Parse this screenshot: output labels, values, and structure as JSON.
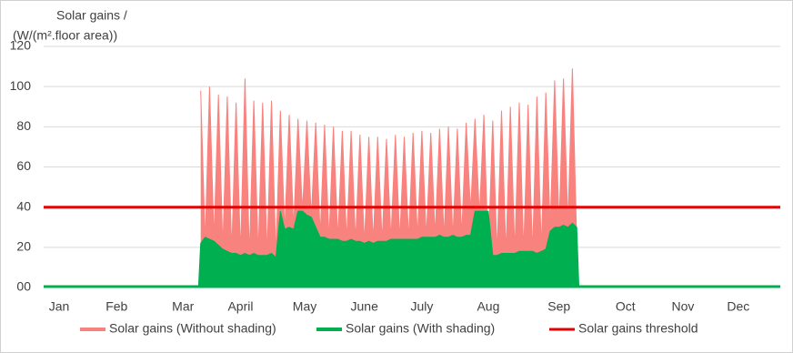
{
  "chart_data": {
    "type": "area",
    "y_label": [
      "Solar gains /",
      "(W/(m².floor area))"
    ],
    "xlim": [
      9,
      342
    ],
    "xticks": [
      {
        "value": 16,
        "label": "Jan"
      },
      {
        "value": 42,
        "label": "Feb"
      },
      {
        "value": 72,
        "label": "Mar"
      },
      {
        "value": 98,
        "label": "April"
      },
      {
        "value": 127,
        "label": "May"
      },
      {
        "value": 154,
        "label": "June"
      },
      {
        "value": 180,
        "label": "July"
      },
      {
        "value": 210,
        "label": "Aug"
      },
      {
        "value": 242,
        "label": "Sep"
      },
      {
        "value": 272,
        "label": "Oct"
      },
      {
        "value": 298,
        "label": "Nov"
      },
      {
        "value": 323,
        "label": "Dec"
      }
    ],
    "ylim": [
      0,
      120
    ],
    "yticks": [
      {
        "value": 0,
        "label": "00"
      },
      20,
      40,
      60,
      80,
      100,
      120
    ],
    "grid": true,
    "legend": "bottom",
    "series": [
      {
        "name": "Solar gains (Without shading)",
        "color": "#f8827e",
        "x": [
          80,
          82,
          84,
          86,
          88,
          90,
          92,
          94,
          96,
          98,
          100,
          102,
          104,
          106,
          108,
          110,
          112,
          114,
          116,
          118,
          120,
          122,
          124,
          126,
          128,
          130,
          132,
          134,
          136,
          138,
          140,
          142,
          144,
          146,
          148,
          150,
          152,
          154,
          156,
          158,
          160,
          162,
          164,
          166,
          168,
          170,
          172,
          174,
          176,
          178,
          180,
          182,
          184,
          186,
          188,
          190,
          192,
          194,
          196,
          198,
          200,
          202,
          204,
          206,
          208,
          210,
          212,
          214,
          216,
          218,
          220,
          222,
          224,
          226,
          228,
          230,
          232,
          234,
          236,
          238,
          240,
          242,
          244,
          246,
          248,
          250
        ],
        "values": [
          98,
          22,
          100,
          24,
          96,
          20,
          95,
          18,
          92,
          17,
          104,
          16,
          93,
          17,
          92,
          16,
          93,
          16,
          88,
          28,
          86,
          30,
          84,
          38,
          83,
          35,
          82,
          26,
          81,
          24,
          80,
          24,
          78,
          23,
          78,
          23,
          76,
          22,
          75,
          23,
          75,
          23,
          74,
          24,
          76,
          24,
          75,
          24,
          77,
          25,
          78,
          25,
          77,
          26,
          79,
          25,
          80,
          25,
          79,
          26,
          82,
          38,
          84,
          36,
          86,
          16,
          83,
          17,
          88,
          17,
          90,
          18,
          92,
          18,
          91,
          17,
          95,
          19,
          97,
          30,
          103,
          31,
          104,
          32,
          109,
          22
        ]
      },
      {
        "name": "Solar gains (With shading)",
        "color": "#00b050",
        "x": [
          9,
          79,
          80,
          82,
          84,
          86,
          88,
          90,
          92,
          94,
          96,
          98,
          100,
          102,
          104,
          106,
          108,
          110,
          112,
          114,
          116,
          118,
          120,
          122,
          124,
          126,
          128,
          130,
          132,
          134,
          136,
          138,
          140,
          142,
          144,
          146,
          148,
          150,
          152,
          154,
          156,
          158,
          160,
          162,
          164,
          166,
          168,
          170,
          172,
          174,
          176,
          178,
          180,
          182,
          184,
          186,
          188,
          190,
          192,
          194,
          196,
          198,
          200,
          202,
          204,
          206,
          208,
          210,
          212,
          214,
          216,
          218,
          220,
          222,
          224,
          226,
          228,
          230,
          232,
          234,
          236,
          238,
          240,
          242,
          244,
          246,
          248,
          250,
          251,
          342
        ],
        "values": [
          0,
          0,
          22,
          25,
          24,
          23,
          21,
          19,
          18,
          17,
          17,
          16,
          17,
          16,
          17,
          16,
          16,
          16,
          17,
          15,
          38,
          29,
          30,
          29,
          38,
          38,
          36,
          35,
          30,
          25,
          25,
          24,
          24,
          24,
          23,
          23,
          24,
          23,
          23,
          22,
          23,
          22,
          23,
          23,
          23,
          24,
          24,
          24,
          24,
          24,
          24,
          24,
          25,
          25,
          25,
          25,
          26,
          25,
          25,
          26,
          25,
          25,
          26,
          26,
          38,
          38,
          38,
          38,
          16,
          16,
          17,
          17,
          17,
          17,
          18,
          18,
          18,
          18,
          17,
          18,
          19,
          28,
          30,
          30,
          31,
          30,
          32,
          30,
          0,
          0
        ]
      },
      {
        "name": "Solar gains threshold",
        "color": "#e30000",
        "type": "line",
        "x": [
          9,
          342
        ],
        "values": [
          40,
          40
        ]
      }
    ]
  }
}
